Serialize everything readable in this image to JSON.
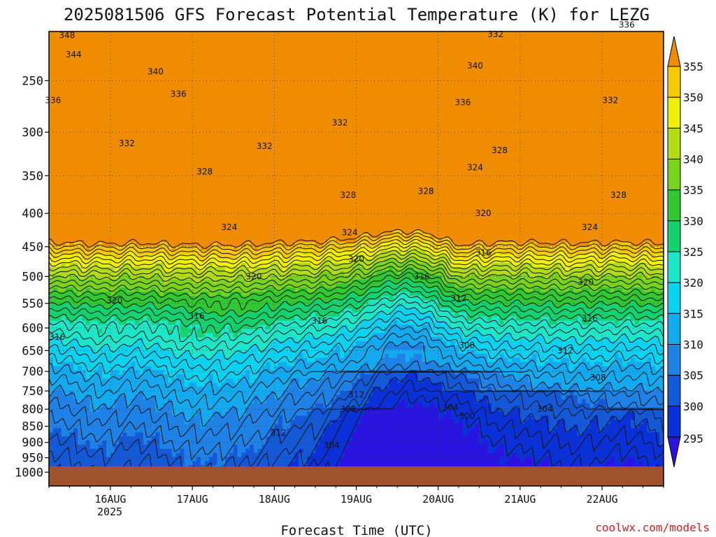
{
  "title": "2025081506 GFS Forecast Potential Temperature (K) for LEZG",
  "xlabel": "Forecast Time (UTC)",
  "credit": "coolwx.com/models",
  "year_label": "2025",
  "colors": {
    "ground": "#a0522d",
    "axis": "#000000",
    "credit": "#cc2222"
  },
  "chart_data": {
    "type": "heatmap",
    "title": "2025081506 GFS Forecast Potential Temperature (K) for LEZG",
    "xlabel": "Forecast Time (UTC)",
    "ylabel": "",
    "x_range": [
      "2025-08-15 06Z",
      "2025-08-22 18Z"
    ],
    "x_ticks": [
      "16AUG",
      "17AUG",
      "18AUG",
      "19AUG",
      "20AUG",
      "21AUG",
      "22AUG"
    ],
    "y_scale": "log-pressure",
    "y_range_hPa": [
      1000,
      200
    ],
    "y_ticks": [
      250,
      300,
      350,
      400,
      450,
      500,
      550,
      600,
      650,
      700,
      750,
      800,
      850,
      900,
      950,
      1000
    ],
    "colorbar": {
      "levels": [
        295,
        300,
        305,
        310,
        315,
        320,
        325,
        330,
        335,
        340,
        345,
        350,
        355
      ],
      "colors": [
        "#2a14e0",
        "#0a32d8",
        "#145ad8",
        "#1e82e6",
        "#14aaf0",
        "#0ad2f0",
        "#1ee6c8",
        "#14d26e",
        "#32c832",
        "#78d21e",
        "#b4dc14",
        "#f0f000",
        "#f5c800",
        "#f08c00"
      ]
    },
    "isentrope_labels": [
      {
        "text": "348",
        "day": 15.47,
        "p": 213
      },
      {
        "text": "344",
        "day": 15.55,
        "p": 228
      },
      {
        "text": "340",
        "day": 16.55,
        "p": 242
      },
      {
        "text": "336",
        "day": 15.3,
        "p": 268
      },
      {
        "text": "336",
        "day": 16.83,
        "p": 262
      },
      {
        "text": "332",
        "day": 16.2,
        "p": 312
      },
      {
        "text": "328",
        "day": 17.15,
        "p": 345
      },
      {
        "text": "332",
        "day": 17.88,
        "p": 315
      },
      {
        "text": "332",
        "day": 18.8,
        "p": 290
      },
      {
        "text": "328",
        "day": 18.9,
        "p": 375
      },
      {
        "text": "324",
        "day": 17.45,
        "p": 420
      },
      {
        "text": "324",
        "day": 18.92,
        "p": 428
      },
      {
        "text": "320",
        "day": 19.0,
        "p": 470
      },
      {
        "text": "320",
        "day": 17.75,
        "p": 500
      },
      {
        "text": "320",
        "day": 16.05,
        "p": 545
      },
      {
        "text": "316",
        "day": 17.05,
        "p": 575
      },
      {
        "text": "316",
        "day": 15.35,
        "p": 620
      },
      {
        "text": "316",
        "day": 18.55,
        "p": 585
      },
      {
        "text": "316",
        "day": 19.8,
        "p": 500
      },
      {
        "text": "312",
        "day": 20.25,
        "p": 540
      },
      {
        "text": "308",
        "day": 20.35,
        "p": 638
      },
      {
        "text": "312",
        "day": 19.0,
        "p": 760
      },
      {
        "text": "308",
        "day": 18.9,
        "p": 800
      },
      {
        "text": "312",
        "day": 18.05,
        "p": 870
      },
      {
        "text": "304",
        "day": 18.7,
        "p": 910
      },
      {
        "text": "304",
        "day": 20.15,
        "p": 795
      },
      {
        "text": "300",
        "day": 20.35,
        "p": 820
      },
      {
        "text": "336",
        "day": 20.3,
        "p": 270
      },
      {
        "text": "340",
        "day": 20.45,
        "p": 237
      },
      {
        "text": "332",
        "day": 20.7,
        "p": 212
      },
      {
        "text": "328",
        "day": 20.75,
        "p": 320
      },
      {
        "text": "324",
        "day": 20.45,
        "p": 340
      },
      {
        "text": "328",
        "day": 19.85,
        "p": 370
      },
      {
        "text": "320",
        "day": 20.55,
        "p": 400
      },
      {
        "text": "316",
        "day": 20.55,
        "p": 460
      },
      {
        "text": "336",
        "day": 22.3,
        "p": 205
      },
      {
        "text": "332",
        "day": 22.1,
        "p": 268
      },
      {
        "text": "328",
        "day": 22.2,
        "p": 375
      },
      {
        "text": "324",
        "day": 21.85,
        "p": 420
      },
      {
        "text": "320",
        "day": 21.8,
        "p": 510
      },
      {
        "text": "316",
        "day": 21.85,
        "p": 580
      },
      {
        "text": "312",
        "day": 21.55,
        "p": 650
      },
      {
        "text": "308",
        "day": 21.95,
        "p": 715
      },
      {
        "text": "304",
        "day": 21.3,
        "p": 800
      }
    ]
  }
}
